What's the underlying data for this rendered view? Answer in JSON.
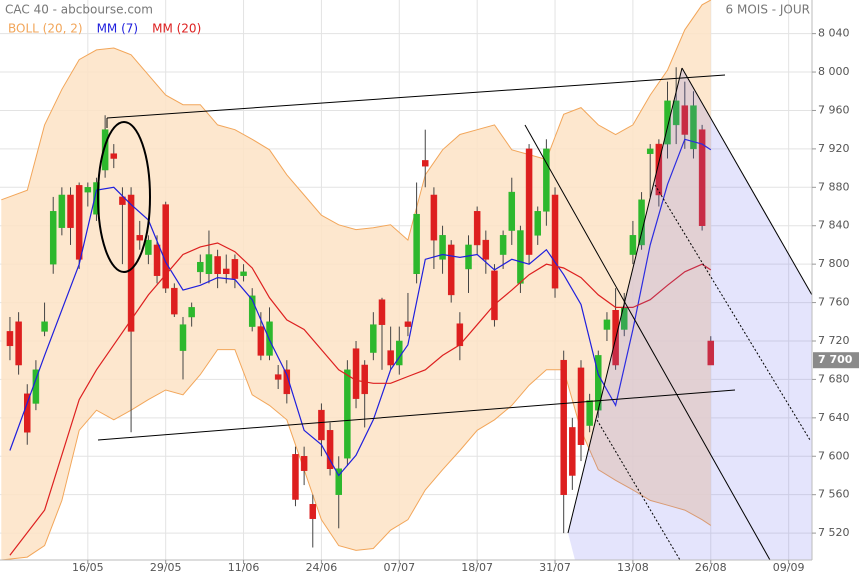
{
  "chart_data": {
    "type": "candlestick",
    "title": "CAC 40 - abcbourse.com",
    "subtitle": "6 MOIS - JOUR",
    "xlim": [
      -1.15,
      92.7
    ],
    "xticks": [
      {
        "value": 9,
        "label": "16/05"
      },
      {
        "value": 18,
        "label": "29/05"
      },
      {
        "value": 27,
        "label": "11/06"
      },
      {
        "value": 36,
        "label": "24/06"
      },
      {
        "value": 45,
        "label": "07/07"
      },
      {
        "value": 54,
        "label": "18/07"
      },
      {
        "value": 63,
        "label": "31/07"
      },
      {
        "value": 72,
        "label": "13/08"
      },
      {
        "value": 81,
        "label": "26/08"
      },
      {
        "value": 90,
        "label": "09/09"
      }
    ],
    "ylim": [
      7492,
      8075
    ],
    "yticks": [
      {
        "value": 7520,
        "label": "7 520"
      },
      {
        "value": 7560,
        "label": "7 560"
      },
      {
        "value": 7600,
        "label": "7 600"
      },
      {
        "value": 7640,
        "label": "7 640"
      },
      {
        "value": 7680,
        "label": "7 680"
      },
      {
        "value": 7720,
        "label": "7 720"
      },
      {
        "value": 7760,
        "label": "7 760"
      },
      {
        "value": 7800,
        "label": "7 800"
      },
      {
        "value": 7840,
        "label": "7 840"
      },
      {
        "value": 7880,
        "label": "7 880"
      },
      {
        "value": 7920,
        "label": "7 920"
      },
      {
        "value": 7960,
        "label": "7 960"
      },
      {
        "value": 8000,
        "label": "8 000"
      },
      {
        "value": 8040,
        "label": "8 040"
      }
    ],
    "grid": true,
    "up_color": "#2db82d",
    "down_color": "#dd1f1f",
    "candles": {
      "x": [
        0,
        1,
        2,
        3,
        4,
        5,
        6,
        7,
        8,
        9,
        10,
        11,
        12,
        13,
        14,
        15,
        16,
        17,
        18,
        19,
        20,
        21,
        22,
        23,
        24,
        25,
        26,
        27,
        28,
        29,
        30,
        31,
        32,
        33,
        34,
        35,
        36,
        37,
        38,
        39,
        40,
        41,
        42,
        43,
        44,
        45,
        46,
        47,
        48,
        49,
        50,
        51,
        52,
        53,
        54,
        55,
        56,
        57,
        58,
        59,
        60,
        61,
        62,
        63,
        64,
        65,
        66,
        67,
        68,
        69,
        70,
        71,
        72,
        73,
        74,
        75,
        76,
        77,
        78,
        79,
        80,
        81
      ],
      "open": [
        7730,
        7740,
        7665,
        7655,
        7730,
        7800,
        7838,
        7872,
        7882,
        7875,
        7852,
        7898,
        7915,
        7870,
        7872,
        7830,
        7810,
        7820,
        7862,
        7775,
        7710,
        7745,
        7792,
        7790,
        7808,
        7795,
        7805,
        7788,
        7735,
        7735,
        7705,
        7685,
        7690,
        7602,
        7600,
        7550,
        7648,
        7627,
        7560,
        7598,
        7712,
        7695,
        7708,
        7763,
        7710,
        7695,
        7740,
        7790,
        7908,
        7872,
        7805,
        7820,
        7738,
        7795,
        7855,
        7825,
        7793,
        7810,
        7835,
        7780,
        7920,
        7830,
        7855,
        7872,
        7700,
        7630,
        7692,
        7632,
        7648,
        7732,
        7752,
        7732,
        7810,
        7820,
        7915,
        7925,
        7925,
        7945,
        7965,
        7920,
        7940,
        7720
      ],
      "high": [
        7745,
        7750,
        7675,
        7700,
        7760,
        7870,
        7880,
        7880,
        7885,
        7885,
        7890,
        7955,
        7925,
        7880,
        7880,
        7845,
        7830,
        7830,
        7865,
        7780,
        7745,
        7760,
        7810,
        7835,
        7815,
        7810,
        7810,
        7800,
        7775,
        7750,
        7755,
        7695,
        7700,
        7610,
        7610,
        7560,
        7655,
        7635,
        7600,
        7700,
        7720,
        7700,
        7750,
        7765,
        7735,
        7735,
        7770,
        7885,
        7940,
        7880,
        7840,
        7825,
        7750,
        7830,
        7860,
        7835,
        7800,
        7835,
        7890,
        7840,
        7925,
        7860,
        7930,
        7880,
        7710,
        7640,
        7700,
        7665,
        7710,
        7750,
        7775,
        7770,
        7845,
        7875,
        7925,
        7930,
        7990,
        8005,
        7990,
        7980,
        7945,
        7725
      ],
      "low": [
        7700,
        7685,
        7612,
        7648,
        7725,
        7790,
        7830,
        7820,
        7795,
        7860,
        7845,
        7890,
        7900,
        7800,
        7625,
        7815,
        7800,
        7780,
        7770,
        7745,
        7680,
        7735,
        7780,
        7780,
        7775,
        7780,
        7775,
        7782,
        7730,
        7700,
        7700,
        7670,
        7655,
        7548,
        7570,
        7505,
        7600,
        7580,
        7525,
        7590,
        7650,
        7630,
        7700,
        7690,
        7690,
        7685,
        7725,
        7780,
        7880,
        7795,
        7790,
        7760,
        7700,
        7770,
        7810,
        7790,
        7735,
        7795,
        7820,
        7770,
        7800,
        7820,
        7840,
        7765,
        7520,
        7565,
        7595,
        7625,
        7640,
        7720,
        7690,
        7725,
        7800,
        7815,
        7870,
        7860,
        7910,
        7925,
        7920,
        7910,
        7835,
        7695
      ],
      "close": [
        7715,
        7695,
        7625,
        7690,
        7740,
        7855,
        7872,
        7838,
        7805,
        7880,
        7885,
        7940,
        7910,
        7862,
        7730,
        7825,
        7825,
        7788,
        7775,
        7748,
        7737,
        7755,
        7802,
        7810,
        7790,
        7790,
        7785,
        7792,
        7767,
        7705,
        7740,
        7680,
        7665,
        7555,
        7585,
        7535,
        7617,
        7587,
        7587,
        7690,
        7660,
        7665,
        7737,
        7737,
        7695,
        7720,
        7735,
        7852,
        7902,
        7825,
        7830,
        7768,
        7715,
        7820,
        7820,
        7805,
        7742,
        7830,
        7875,
        7835,
        7810,
        7855,
        7920,
        7775,
        7560,
        7580,
        7612,
        7658,
        7705,
        7742,
        7695,
        7755,
        7830,
        7867,
        7920,
        7872,
        7970,
        7970,
        7935,
        7965,
        7840,
        7695
      ]
    },
    "series": [
      {
        "name": "BOLL (20, 2)",
        "color": "#f2a65a",
        "fill": "#fde3c6",
        "x": [
          -1,
          2,
          4,
          6,
          8,
          10,
          12,
          14,
          16,
          18,
          20,
          22,
          24,
          26,
          28,
          30,
          32,
          34,
          36,
          38,
          40,
          42,
          44,
          46,
          48,
          50,
          52,
          54,
          56,
          58,
          60,
          62,
          64,
          66,
          68,
          70,
          72,
          74,
          76,
          78,
          80,
          81
        ],
        "upper": [
          7867,
          7877,
          7945,
          7982,
          8013,
          8023,
          8025,
          8018,
          7997,
          7976,
          7966,
          7966,
          7945,
          7940,
          7930,
          7919,
          7893,
          7872,
          7851,
          7841,
          7836,
          7838,
          7841,
          7825,
          7893,
          7919,
          7935,
          7940,
          7945,
          7919,
          7914,
          7909,
          7956,
          7963,
          7945,
          7935,
          7945,
          7976,
          8002,
          8044,
          8070,
          8075
        ],
        "lower": [
          7492,
          7495,
          7507,
          7554,
          7627,
          7648,
          7638,
          7648,
          7659,
          7669,
          7664,
          7685,
          7711,
          7711,
          7664,
          7653,
          7638,
          7586,
          7534,
          7507,
          7502,
          7504,
          7523,
          7534,
          7565,
          7586,
          7606,
          7627,
          7638,
          7653,
          7674,
          7690,
          7690,
          7627,
          7586,
          7575,
          7565,
          7554,
          7549,
          7544,
          7534,
          7528
        ]
      },
      {
        "name": "MM (7)",
        "color": "#1f1fdd",
        "x": [
          0,
          4,
          8,
          10,
          12,
          14,
          16,
          18,
          20,
          22,
          24,
          26,
          28,
          30,
          32,
          34,
          36,
          38,
          40,
          42,
          44,
          46,
          48,
          50,
          52,
          54,
          56,
          58,
          60,
          62,
          64,
          66,
          68,
          70,
          72,
          74,
          76,
          78,
          80,
          81
        ],
        "values": [
          7606,
          7705,
          7800,
          7877,
          7880,
          7862,
          7846,
          7802,
          7773,
          7778,
          7786,
          7784,
          7763,
          7721,
          7685,
          7627,
          7612,
          7580,
          7601,
          7638,
          7690,
          7716,
          7805,
          7810,
          7807,
          7810,
          7794,
          7805,
          7800,
          7815,
          7789,
          7758,
          7685,
          7653,
          7732,
          7820,
          7883,
          7930,
          7925,
          7919
        ]
      },
      {
        "name": "MM (20)",
        "color": "#dd2020",
        "x": [
          0,
          4,
          8,
          10,
          12,
          14,
          16,
          18,
          20,
          22,
          24,
          26,
          28,
          30,
          32,
          34,
          36,
          38,
          40,
          42,
          44,
          46,
          48,
          50,
          52,
          54,
          56,
          58,
          60,
          62,
          64,
          66,
          68,
          70,
          72,
          74,
          76,
          78,
          80,
          81
        ],
        "values": [
          7497,
          7544,
          7659,
          7690,
          7716,
          7742,
          7768,
          7789,
          7810,
          7818,
          7822,
          7813,
          7796,
          7765,
          7742,
          7732,
          7711,
          7690,
          7679,
          7676,
          7676,
          7683,
          7690,
          7705,
          7716,
          7737,
          7758,
          7773,
          7789,
          7800,
          7796,
          7786,
          7768,
          7755,
          7755,
          7763,
          7778,
          7792,
          7800,
          7794
        ]
      }
    ],
    "last_price": {
      "value": 7700,
      "label": "7 700"
    }
  }
}
